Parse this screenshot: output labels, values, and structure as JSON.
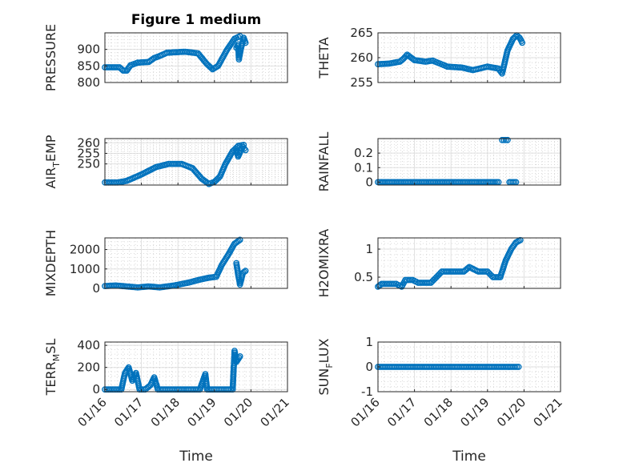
{
  "chart_data": [
    {
      "type": "scatter",
      "title": "Figure 1 medium",
      "ylabel": "PRESSURE",
      "ylim": [
        800,
        950
      ],
      "yticks": [
        800,
        850,
        900
      ],
      "segments": [
        [
          [
            0,
            846
          ],
          [
            0.4,
            846
          ],
          [
            0.5,
            836
          ],
          [
            0.6,
            836
          ],
          [
            0.7,
            852
          ],
          [
            0.9,
            860
          ],
          [
            1.2,
            862
          ],
          [
            1.35,
            874
          ],
          [
            1.5,
            880
          ],
          [
            1.7,
            890
          ],
          [
            2.2,
            893
          ],
          [
            2.55,
            888
          ],
          [
            2.8,
            855
          ],
          [
            2.95,
            840
          ],
          [
            3.1,
            850
          ],
          [
            3.35,
            900
          ],
          [
            3.55,
            932
          ],
          [
            3.7,
            940
          ]
        ],
        [
          [
            3.6,
            905
          ],
          [
            3.65,
            915
          ],
          [
            3.67,
            870
          ],
          [
            3.72,
            900
          ],
          [
            3.8,
            935
          ],
          [
            3.85,
            920
          ]
        ]
      ]
    },
    {
      "type": "scatter",
      "title": "",
      "ylabel": "THETA",
      "ylim": [
        255,
        265
      ],
      "yticks": [
        255,
        260,
        265
      ],
      "segments": [
        [
          [
            0,
            258.7
          ],
          [
            0.3,
            258.8
          ],
          [
            0.6,
            259.2
          ],
          [
            0.7,
            259.8
          ],
          [
            0.8,
            260.6
          ],
          [
            1.0,
            259.5
          ],
          [
            1.3,
            259.2
          ],
          [
            1.5,
            259.4
          ],
          [
            1.7,
            258.8
          ],
          [
            1.9,
            258.2
          ],
          [
            2.3,
            258.0
          ],
          [
            2.6,
            257.5
          ],
          [
            3.0,
            258.2
          ],
          [
            3.3,
            257.8
          ],
          [
            3.4,
            256.8
          ],
          [
            3.55,
            261.5
          ],
          [
            3.7,
            263.8
          ],
          [
            3.8,
            264.5
          ],
          [
            3.88,
            264.0
          ],
          [
            3.95,
            263.0
          ]
        ]
      ]
    },
    {
      "type": "scatter",
      "title": "",
      "ylabel": "AIR_TEMP",
      "ylim": [
        240,
        262
      ],
      "yticks": [
        250,
        255,
        260
      ],
      "segments": [
        [
          [
            0,
            241.2
          ],
          [
            0.35,
            241.2
          ],
          [
            0.6,
            242.0
          ],
          [
            1.0,
            245.0
          ],
          [
            1.4,
            248.5
          ],
          [
            1.75,
            250.0
          ],
          [
            2.1,
            250.0
          ],
          [
            2.4,
            248.0
          ],
          [
            2.65,
            243.0
          ],
          [
            2.85,
            240.5
          ],
          [
            3.0,
            241.5
          ],
          [
            3.15,
            244.0
          ],
          [
            3.3,
            250.0
          ],
          [
            3.5,
            256.0
          ],
          [
            3.65,
            258.5
          ],
          [
            3.8,
            259.0
          ]
        ],
        [
          [
            3.6,
            256.0
          ],
          [
            3.65,
            253.5
          ],
          [
            3.7,
            255.5
          ],
          [
            3.78,
            258.0
          ],
          [
            3.85,
            256.5
          ]
        ]
      ]
    },
    {
      "type": "scatter",
      "title": "",
      "ylabel": "RAINFALL",
      "ylim": [
        -0.02,
        0.3
      ],
      "yticks": [
        0,
        0.1,
        0.2
      ],
      "segments": [
        [
          [
            0,
            0
          ],
          [
            3.3,
            0
          ]
        ],
        [
          [
            3.4,
            0.29
          ],
          [
            3.55,
            0.29
          ]
        ],
        [
          [
            3.6,
            0
          ],
          [
            3.78,
            0
          ]
        ]
      ]
    },
    {
      "type": "scatter",
      "title": "",
      "ylabel": "MIXDEPTH",
      "ylim": [
        0,
        2600
      ],
      "yticks": [
        0,
        1000,
        2000
      ],
      "segments": [
        [
          [
            0,
            120
          ],
          [
            0.3,
            150
          ],
          [
            0.6,
            100
          ],
          [
            0.9,
            50
          ],
          [
            1.2,
            100
          ],
          [
            1.5,
            50
          ],
          [
            1.9,
            150
          ],
          [
            2.3,
            300
          ],
          [
            2.6,
            450
          ],
          [
            2.85,
            550
          ],
          [
            3.05,
            600
          ],
          [
            3.2,
            1200
          ],
          [
            3.4,
            1800
          ],
          [
            3.55,
            2300
          ],
          [
            3.7,
            2500
          ]
        ],
        [
          [
            3.6,
            1300
          ],
          [
            3.65,
            700
          ],
          [
            3.7,
            200
          ],
          [
            3.78,
            800
          ],
          [
            3.85,
            900
          ]
        ]
      ]
    },
    {
      "type": "scatter",
      "title": "",
      "ylabel": "H2OMIXRA",
      "ylim": [
        0.3,
        1.2
      ],
      "yticks": [
        0.5,
        1.0
      ],
      "segments": [
        [
          [
            0,
            0.33
          ],
          [
            0.1,
            0.38
          ],
          [
            0.5,
            0.38
          ],
          [
            0.65,
            0.33
          ],
          [
            0.75,
            0.45
          ],
          [
            0.95,
            0.45
          ],
          [
            1.1,
            0.4
          ],
          [
            1.45,
            0.4
          ],
          [
            1.6,
            0.5
          ],
          [
            1.75,
            0.6
          ],
          [
            2.35,
            0.6
          ],
          [
            2.5,
            0.68
          ],
          [
            2.75,
            0.6
          ],
          [
            3.0,
            0.6
          ],
          [
            3.15,
            0.5
          ],
          [
            3.35,
            0.5
          ],
          [
            3.5,
            0.8
          ],
          [
            3.65,
            1.0
          ],
          [
            3.78,
            1.12
          ],
          [
            3.9,
            1.16
          ]
        ]
      ]
    },
    {
      "type": "scatter",
      "title": "",
      "ylabel": "TERR_MSL",
      "ylim": [
        -20,
        430
      ],
      "yticks": [
        0,
        200,
        400
      ],
      "segments": [
        [
          [
            0,
            0
          ],
          [
            0.45,
            0
          ],
          [
            0.55,
            150
          ],
          [
            0.65,
            200
          ],
          [
            0.75,
            80
          ],
          [
            0.85,
            150
          ],
          [
            0.95,
            0
          ],
          [
            1.1,
            0
          ],
          [
            1.25,
            40
          ],
          [
            1.35,
            110
          ],
          [
            1.45,
            0
          ],
          [
            2.6,
            0
          ],
          [
            2.75,
            140
          ],
          [
            2.8,
            0
          ],
          [
            3.5,
            0
          ],
          [
            3.55,
            350
          ],
          [
            3.6,
            250
          ],
          [
            3.7,
            300
          ]
        ]
      ]
    },
    {
      "type": "scatter",
      "title": "",
      "ylabel": "SUN_FLUX",
      "ylim": [
        -1,
        1
      ],
      "yticks": [
        -1,
        0,
        1
      ],
      "segments": [
        [
          [
            0,
            0
          ],
          [
            3.85,
            0
          ]
        ]
      ]
    }
  ],
  "axes": {
    "titles": [
      "Figure 1 medium",
      "",
      "",
      "",
      "",
      "",
      "",
      ""
    ],
    "ylabels": [
      {
        "main": "PRESSURE",
        "sub": "",
        "rest": ""
      },
      {
        "main": "THETA",
        "sub": "",
        "rest": ""
      },
      {
        "main": "AIR",
        "sub": "T",
        "rest": "EMP"
      },
      {
        "main": "RAINFALL",
        "sub": "",
        "rest": ""
      },
      {
        "main": "MIXDEPTH",
        "sub": "",
        "rest": ""
      },
      {
        "main": "H2OMIXRA",
        "sub": "",
        "rest": ""
      },
      {
        "main": "TERR",
        "sub": "M",
        "rest": "SL"
      },
      {
        "main": "SUN",
        "sub": "F",
        "rest": "LUX"
      }
    ],
    "ytick_labels": [
      [
        "800",
        "850",
        "900"
      ],
      [
        "255",
        "260",
        "265"
      ],
      [
        "250",
        "255",
        "260"
      ],
      [
        "0",
        "0.1",
        "0.2"
      ],
      [
        "0",
        "1000",
        "2000"
      ],
      [
        "0.5",
        "1"
      ],
      [
        "0",
        "200",
        "400"
      ],
      [
        "-1",
        "0",
        "1"
      ]
    ],
    "x_tick_labels": [
      "01/16",
      "01/17",
      "01/18",
      "01/19",
      "01/20",
      "01/21"
    ],
    "xlabel": "Time"
  },
  "style": {
    "marker_color": "#0072bd",
    "grid_color": "#e0e0e0",
    "axis_color": "#262626"
  }
}
